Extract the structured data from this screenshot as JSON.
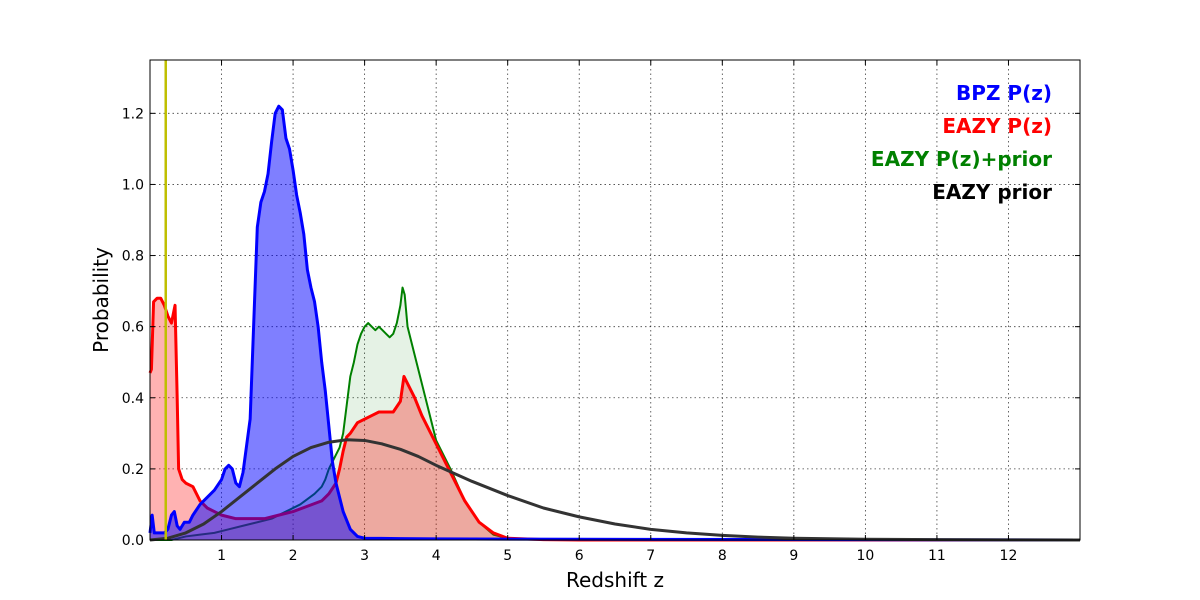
{
  "chart_data": {
    "type": "area",
    "title": "",
    "xlabel": "Redshift z",
    "ylabel": "Probability",
    "xlim": [
      0,
      13
    ],
    "ylim": [
      0,
      1.35
    ],
    "grid": true,
    "legend_placement": "top-right",
    "x_ticks": [
      1,
      2,
      3,
      4,
      5,
      6,
      7,
      8,
      9,
      10,
      11,
      12
    ],
    "y_ticks": [
      0.0,
      0.2,
      0.4,
      0.6,
      0.8,
      1.0,
      1.2
    ],
    "vline": {
      "x": 0.22,
      "color": "#bfbf00"
    },
    "series": [
      {
        "name": "BPZ P(z)",
        "color": "#0000ff",
        "fill_opacity": 0.5,
        "stroke_width": 3,
        "x": [
          0,
          0.03,
          0.06,
          0.1,
          0.15,
          0.2,
          0.25,
          0.3,
          0.34,
          0.38,
          0.42,
          0.48,
          0.55,
          0.6,
          0.7,
          0.8,
          0.9,
          1.0,
          1.05,
          1.1,
          1.15,
          1.2,
          1.25,
          1.3,
          1.4,
          1.5,
          1.55,
          1.6,
          1.65,
          1.7,
          1.75,
          1.8,
          1.85,
          1.9,
          1.95,
          2.0,
          2.05,
          2.1,
          2.15,
          2.2,
          2.25,
          2.3,
          2.35,
          2.4,
          2.45,
          2.5,
          2.55,
          2.6,
          2.7,
          2.8,
          2.9,
          3.0,
          3.5,
          4.0,
          6.0,
          13.0
        ],
        "y": [
          0.02,
          0.07,
          0.02,
          0.02,
          0.02,
          0.02,
          0.03,
          0.07,
          0.08,
          0.04,
          0.03,
          0.05,
          0.05,
          0.07,
          0.1,
          0.12,
          0.14,
          0.17,
          0.2,
          0.21,
          0.2,
          0.16,
          0.15,
          0.19,
          0.34,
          0.88,
          0.95,
          0.98,
          1.03,
          1.12,
          1.2,
          1.22,
          1.21,
          1.13,
          1.1,
          1.04,
          0.97,
          0.92,
          0.86,
          0.76,
          0.71,
          0.67,
          0.6,
          0.5,
          0.42,
          0.32,
          0.22,
          0.16,
          0.08,
          0.03,
          0.01,
          0.005,
          0.004,
          0.003,
          0.002,
          0.0
        ]
      },
      {
        "name": "EAZY P(z)",
        "color": "#ff0000",
        "fill_opacity": 0.3,
        "stroke_width": 3,
        "x": [
          0,
          0.02,
          0.05,
          0.1,
          0.15,
          0.2,
          0.25,
          0.3,
          0.33,
          0.35,
          0.38,
          0.4,
          0.45,
          0.5,
          0.6,
          0.7,
          0.8,
          0.9,
          1.0,
          1.2,
          1.4,
          1.6,
          1.8,
          2.0,
          2.2,
          2.4,
          2.5,
          2.6,
          2.65,
          2.7,
          2.75,
          2.8,
          2.9,
          3.0,
          3.1,
          3.2,
          3.3,
          3.4,
          3.5,
          3.55,
          3.6,
          3.7,
          3.8,
          3.9,
          4.0,
          4.2,
          4.4,
          4.6,
          4.8,
          5.0,
          5.5,
          6.0,
          13.0
        ],
        "y": [
          0.47,
          0.48,
          0.67,
          0.68,
          0.68,
          0.66,
          0.63,
          0.61,
          0.64,
          0.66,
          0.4,
          0.2,
          0.17,
          0.16,
          0.15,
          0.11,
          0.09,
          0.08,
          0.07,
          0.06,
          0.06,
          0.06,
          0.07,
          0.08,
          0.095,
          0.11,
          0.13,
          0.16,
          0.2,
          0.25,
          0.29,
          0.3,
          0.33,
          0.34,
          0.35,
          0.36,
          0.36,
          0.36,
          0.39,
          0.46,
          0.44,
          0.4,
          0.35,
          0.31,
          0.27,
          0.19,
          0.11,
          0.05,
          0.02,
          0.005,
          0.001,
          0.0,
          0.0
        ]
      },
      {
        "name": "EAZY P(z)+prior",
        "color": "#008000",
        "fill_opacity": 0.1,
        "stroke_width": 2,
        "x": [
          0,
          0.3,
          0.5,
          0.7,
          0.9,
          1.1,
          1.3,
          1.5,
          1.7,
          1.9,
          2.1,
          2.3,
          2.4,
          2.45,
          2.5,
          2.55,
          2.6,
          2.65,
          2.7,
          2.75,
          2.8,
          2.85,
          2.9,
          2.95,
          3.0,
          3.05,
          3.1,
          3.15,
          3.2,
          3.25,
          3.3,
          3.35,
          3.4,
          3.45,
          3.5,
          3.53,
          3.56,
          3.6,
          3.7,
          3.8,
          3.9,
          4.0,
          4.2,
          4.4,
          4.6,
          4.8,
          5.0,
          5.5,
          6.0,
          13.0
        ],
        "y": [
          0.0,
          0.0,
          0.01,
          0.015,
          0.02,
          0.03,
          0.04,
          0.05,
          0.06,
          0.08,
          0.1,
          0.13,
          0.15,
          0.17,
          0.2,
          0.22,
          0.24,
          0.26,
          0.3,
          0.38,
          0.46,
          0.5,
          0.55,
          0.58,
          0.6,
          0.61,
          0.6,
          0.59,
          0.6,
          0.59,
          0.58,
          0.57,
          0.58,
          0.61,
          0.66,
          0.71,
          0.69,
          0.6,
          0.52,
          0.44,
          0.36,
          0.28,
          0.2,
          0.11,
          0.05,
          0.015,
          0.005,
          0.001,
          0.0,
          0.0
        ]
      },
      {
        "name": "EAZY prior",
        "color": "#333333",
        "fill_opacity": 0,
        "stroke_width": 3,
        "x": [
          0,
          0.25,
          0.5,
          0.75,
          1.0,
          1.25,
          1.5,
          1.75,
          2.0,
          2.25,
          2.5,
          2.75,
          3.0,
          3.25,
          3.5,
          3.75,
          4.0,
          4.5,
          5.0,
          5.5,
          6.0,
          6.5,
          7.0,
          7.5,
          8.0,
          8.5,
          9.0,
          10.0,
          11.0,
          12.0,
          13.0
        ],
        "y": [
          0.0,
          0.005,
          0.02,
          0.045,
          0.08,
          0.12,
          0.16,
          0.2,
          0.235,
          0.26,
          0.275,
          0.282,
          0.28,
          0.27,
          0.255,
          0.235,
          0.21,
          0.165,
          0.125,
          0.09,
          0.065,
          0.045,
          0.03,
          0.02,
          0.013,
          0.008,
          0.005,
          0.002,
          0.001,
          0.0005,
          0.0
        ]
      }
    ]
  }
}
